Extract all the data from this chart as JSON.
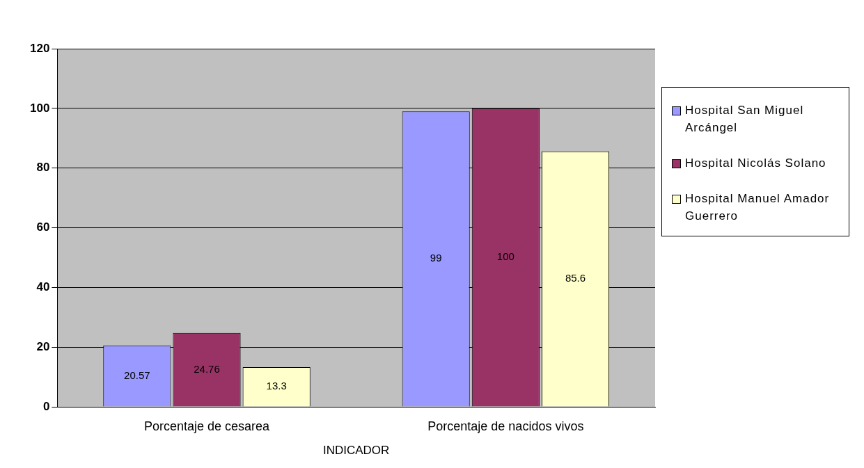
{
  "chart_data": {
    "type": "bar",
    "xlabel": "INDICADOR",
    "categories": [
      "Porcentaje de cesarea",
      "Porcentaje de nacidos vivos"
    ],
    "series": [
      {
        "name": "Hospital San Miguel Arcángel",
        "color": "#9999ff",
        "values": [
          20.57,
          99
        ]
      },
      {
        "name": "Hospital Nicolás Solano",
        "color": "#993366",
        "values": [
          24.76,
          100
        ]
      },
      {
        "name": "Hospital Manuel Amador Guerrero",
        "color": "#ffffcc",
        "values": [
          13.3,
          85.6
        ]
      }
    ],
    "ylim": [
      0,
      120
    ],
    "yticks": [
      0,
      20,
      40,
      60,
      80,
      100,
      120
    ],
    "grid": "y",
    "legend": "right",
    "data_labels": true
  }
}
